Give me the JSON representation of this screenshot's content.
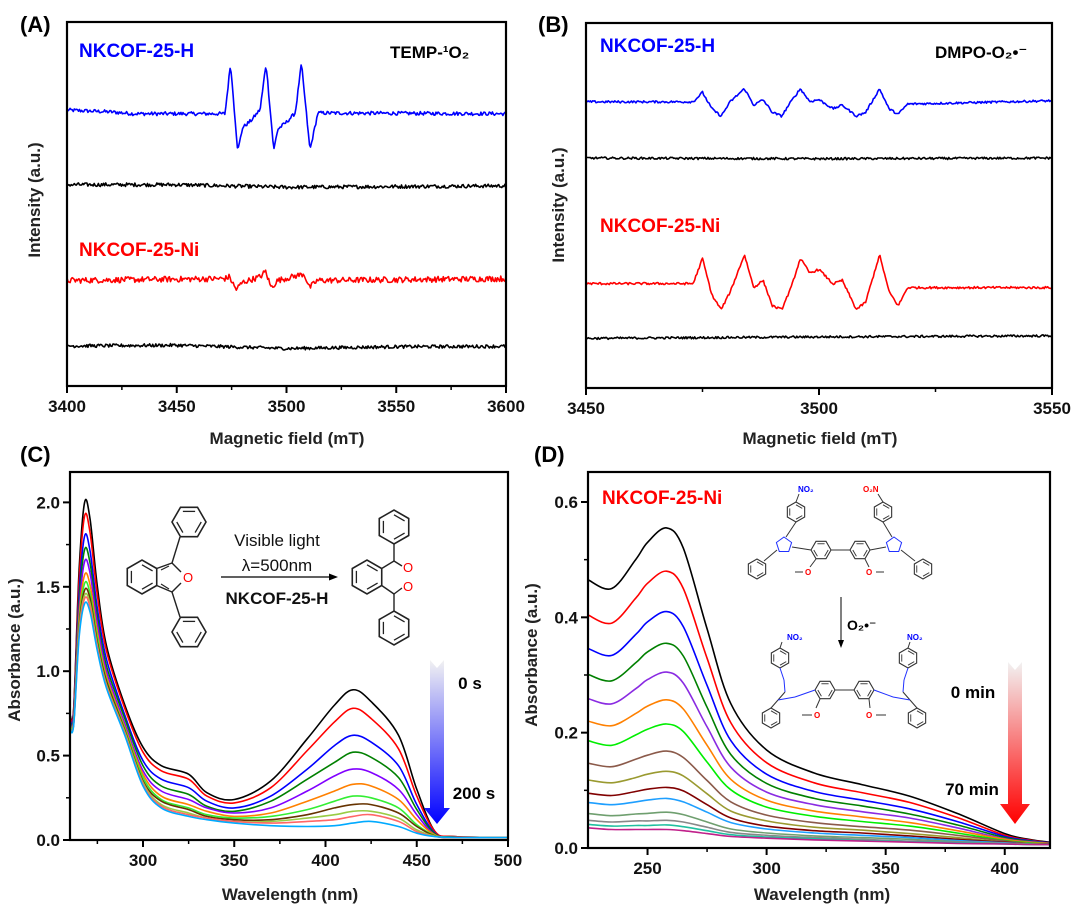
{
  "panels": {
    "A": {
      "label": "(A)",
      "label_h": "NKCOF-25-H",
      "label_ni": "NKCOF-25-Ni",
      "probe": "TEMP-¹O₂"
    },
    "B": {
      "label": "(B)",
      "label_h": "NKCOF-25-H",
      "label_ni": "NKCOF-25-Ni",
      "probe": "DMPO-O₂•⁻"
    },
    "C": {
      "label": "(C)",
      "reaction_top": "Visible light",
      "reaction_wavelength": "λ=500nm",
      "catalyst": "NKCOF-25-H",
      "atom_o": "O",
      "time_start": "0 s",
      "time_end": "200 s"
    },
    "D": {
      "label": "(D)",
      "sample": "NKCOF-25-Ni",
      "nitro_left": "NO₂",
      "nitro_right": "O₂N",
      "atom_o": "O",
      "reagent": "O₂•⁻",
      "time_start": "0 min",
      "time_end": "70 min"
    }
  },
  "colors": {
    "blue_arrow": "#0000ff",
    "red_arrow": "#ff0000",
    "h_label": "#0000ff",
    "ni_label": "#ff0000"
  },
  "chart_data": [
    {
      "panel": "A",
      "type": "line",
      "xlabel": "Magnetic field (mT)",
      "ylabel": "Intensity (a.u.)",
      "xlim": [
        3400,
        3600
      ],
      "ylim": [
        0,
        100
      ],
      "xticks": [
        3400,
        3450,
        3500,
        3550,
        3600
      ],
      "xtick_labels": [
        "3400",
        "3450",
        "3500",
        "3550",
        "3600"
      ],
      "xminor": [
        3425,
        3475,
        3525,
        3575
      ],
      "yticks": [],
      "grid": false,
      "series": [
        {
          "name": "NKCOF-25-H",
          "color": "#0000ff",
          "noise": 0.5,
          "x": [
            3400,
            3420,
            3430,
            3472,
            3474.5,
            3477.8,
            3480,
            3484,
            3488,
            3490.7,
            3494.2,
            3496,
            3500,
            3504,
            3506.8,
            3510.7,
            3514.3,
            3600
          ],
          "y": [
            75.8,
            75.3,
            74.8,
            74.8,
            88.6,
            64.5,
            71,
            73,
            76,
            88.6,
            64.8,
            70.5,
            72.5,
            75,
            88.6,
            64.8,
            75,
            74.8
          ]
        },
        {
          "color": "#000000",
          "noise": 0.5,
          "x": [
            3400,
            3450,
            3500,
            3550,
            3600
          ],
          "y": [
            55.3,
            55.3,
            54.6,
            54.8,
            55
          ]
        },
        {
          "name": "NKCOF-25-Ni",
          "color": "#ff0000",
          "noise": 0.8,
          "x": [
            3400,
            3472,
            3474,
            3477,
            3480,
            3488,
            3490.5,
            3493,
            3496,
            3506,
            3508,
            3510.5,
            3514,
            3600
          ],
          "y": [
            29,
            29.5,
            30,
            26.5,
            28.5,
            30,
            31.5,
            27,
            29,
            30.5,
            30.8,
            27,
            29,
            29.5
          ]
        },
        {
          "color": "#000000",
          "noise": 0.45,
          "x": [
            3400,
            3450,
            3500,
            3550,
            3600
          ],
          "y": [
            11,
            11.2,
            10.3,
            10.8,
            10.9
          ]
        }
      ]
    },
    {
      "panel": "B",
      "type": "line",
      "xlabel": "Magnetic field (mT)",
      "ylabel": "Intensity (a.u.)",
      "xlim": [
        3450,
        3550
      ],
      "ylim": [
        0,
        100
      ],
      "xticks": [
        3450,
        3500,
        3550
      ],
      "xtick_labels": [
        "3450",
        "3500",
        "3550"
      ],
      "xminor": [
        3475,
        3525
      ],
      "yticks": [],
      "grid": false,
      "series": [
        {
          "name": "NKCOF-25-H",
          "color": "#0000ff",
          "noise": 0.3,
          "x": [
            3450,
            3473,
            3475,
            3477,
            3479,
            3481,
            3484,
            3486,
            3488,
            3490,
            3492,
            3494,
            3496,
            3498,
            3500,
            3503,
            3505,
            3508,
            3510,
            3513,
            3515,
            3517,
            3519,
            3550
          ],
          "y": [
            78.4,
            78.4,
            81,
            76.5,
            74.5,
            78.5,
            82,
            77.5,
            79,
            75.5,
            74.5,
            78.5,
            82,
            78.5,
            79,
            76.5,
            77.5,
            74.5,
            75.5,
            82,
            76.5,
            75,
            77.8,
            78.7
          ]
        },
        {
          "color": "#000000",
          "noise": 0.3,
          "x": [
            3450,
            3500,
            3550
          ],
          "y": [
            63,
            62.8,
            63
          ]
        },
        {
          "name": "NKCOF-25-Ni",
          "color": "#ff0000",
          "noise": 0.3,
          "x": [
            3450,
            3473,
            3475,
            3477,
            3479,
            3481,
            3484,
            3486,
            3488,
            3490,
            3492,
            3494,
            3496,
            3498,
            3500,
            3503,
            3505,
            3508,
            3510,
            3513,
            3515,
            3517,
            3519,
            3550
          ],
          "y": [
            28.6,
            28.6,
            35.5,
            25.5,
            21.5,
            26.5,
            36.5,
            27.5,
            29.5,
            22.5,
            21.5,
            27.5,
            35.5,
            31.5,
            32.5,
            28.5,
            29.5,
            21.5,
            23.5,
            36.5,
            26.5,
            22.5,
            27.5,
            27.5
          ]
        },
        {
          "color": "#000000",
          "noise": 0.3,
          "x": [
            3450,
            3500,
            3550
          ],
          "y": [
            13.6,
            14,
            14.3
          ]
        }
      ]
    },
    {
      "panel": "C",
      "type": "line",
      "xlabel": "Wavelength (nm)",
      "ylabel": "Absorbance (a.u.)",
      "xlim": [
        260,
        500
      ],
      "ylim": [
        0,
        2.18
      ],
      "xticks": [
        300,
        350,
        400,
        450,
        500
      ],
      "xtick_labels": [
        "300",
        "350",
        "400",
        "450",
        "500"
      ],
      "xminor": [
        275,
        325,
        375,
        425,
        475
      ],
      "yticks": [
        0,
        0.5,
        1.0,
        1.5,
        2.0
      ],
      "ytick_labels": [
        "0.0",
        "0.5",
        "1.0",
        "1.5",
        "2.0"
      ],
      "yminor": [
        0.25,
        0.75,
        1.25,
        1.75
      ],
      "grid": false,
      "x": [
        260,
        262,
        265,
        268,
        271,
        275,
        280,
        290,
        300,
        310,
        325,
        335,
        350,
        370,
        390,
        405,
        415,
        425,
        440,
        450,
        460,
        470,
        500
      ],
      "series": [
        {
          "color": "#000000",
          "y": [
            0.74,
            0.78,
            1.6,
            2.0,
            1.9,
            1.5,
            1.15,
            0.8,
            0.55,
            0.44,
            0.39,
            0.28,
            0.24,
            0.35,
            0.6,
            0.8,
            0.89,
            0.82,
            0.62,
            0.3,
            0.05,
            0.02,
            0.015
          ]
        },
        {
          "color": "#ff0000",
          "y": [
            0.73,
            0.77,
            1.54,
            1.92,
            1.82,
            1.45,
            1.12,
            0.78,
            0.52,
            0.41,
            0.36,
            0.26,
            0.22,
            0.31,
            0.53,
            0.7,
            0.78,
            0.72,
            0.54,
            0.26,
            0.05,
            0.02,
            0.015
          ]
        },
        {
          "color": "#0000ff",
          "y": [
            0.71,
            0.75,
            1.46,
            1.8,
            1.71,
            1.37,
            1.07,
            0.74,
            0.47,
            0.36,
            0.31,
            0.23,
            0.19,
            0.26,
            0.42,
            0.56,
            0.62,
            0.58,
            0.44,
            0.21,
            0.04,
            0.018,
            0.015
          ]
        },
        {
          "color": "#008000",
          "y": [
            0.7,
            0.73,
            1.41,
            1.72,
            1.64,
            1.32,
            1.03,
            0.72,
            0.44,
            0.32,
            0.27,
            0.2,
            0.17,
            0.23,
            0.36,
            0.46,
            0.52,
            0.49,
            0.37,
            0.18,
            0.036,
            0.017,
            0.015
          ]
        },
        {
          "color": "#8000ff",
          "y": [
            0.69,
            0.72,
            1.36,
            1.65,
            1.58,
            1.28,
            1.0,
            0.69,
            0.41,
            0.29,
            0.24,
            0.19,
            0.16,
            0.19,
            0.29,
            0.38,
            0.42,
            0.4,
            0.3,
            0.15,
            0.03,
            0.016,
            0.015
          ]
        },
        {
          "color": "#ff8000",
          "y": [
            0.68,
            0.71,
            1.32,
            1.57,
            1.51,
            1.23,
            0.97,
            0.67,
            0.39,
            0.26,
            0.21,
            0.17,
            0.14,
            0.16,
            0.23,
            0.29,
            0.33,
            0.32,
            0.24,
            0.12,
            0.03,
            0.016,
            0.015
          ]
        },
        {
          "color": "#33ee33",
          "y": [
            0.68,
            0.7,
            1.28,
            1.52,
            1.46,
            1.2,
            0.95,
            0.66,
            0.37,
            0.24,
            0.19,
            0.15,
            0.13,
            0.14,
            0.18,
            0.23,
            0.26,
            0.25,
            0.19,
            0.09,
            0.026,
            0.016,
            0.015
          ]
        },
        {
          "color": "#663300",
          "y": [
            0.67,
            0.69,
            1.26,
            1.48,
            1.43,
            1.17,
            0.94,
            0.65,
            0.35,
            0.23,
            0.18,
            0.14,
            0.12,
            0.12,
            0.15,
            0.19,
            0.21,
            0.21,
            0.16,
            0.08,
            0.024,
            0.015,
            0.015
          ]
        },
        {
          "color": "#99cc44",
          "y": [
            0.67,
            0.69,
            1.24,
            1.45,
            1.4,
            1.15,
            0.92,
            0.64,
            0.34,
            0.21,
            0.16,
            0.13,
            0.11,
            0.11,
            0.13,
            0.15,
            0.17,
            0.17,
            0.13,
            0.06,
            0.023,
            0.015,
            0.015
          ]
        },
        {
          "color": "#ff6666",
          "y": [
            0.66,
            0.69,
            1.22,
            1.43,
            1.38,
            1.14,
            0.91,
            0.63,
            0.33,
            0.2,
            0.15,
            0.13,
            0.11,
            0.1,
            0.11,
            0.12,
            0.14,
            0.15,
            0.11,
            0.05,
            0.021,
            0.015,
            0.015
          ]
        },
        {
          "color": "#00aaff",
          "y": [
            0.66,
            0.68,
            1.2,
            1.4,
            1.35,
            1.12,
            0.9,
            0.62,
            0.32,
            0.19,
            0.14,
            0.12,
            0.1,
            0.085,
            0.08,
            0.085,
            0.1,
            0.11,
            0.08,
            0.04,
            0.02,
            0.015,
            0.015
          ]
        }
      ]
    },
    {
      "panel": "D",
      "type": "line",
      "xlabel": "Wavelength (nm)",
      "ylabel": "Absorbance (a.u.)",
      "xlim": [
        225,
        419
      ],
      "ylim": [
        0,
        0.652
      ],
      "xticks": [
        250,
        300,
        350,
        400
      ],
      "xtick_labels": [
        "250",
        "300",
        "350",
        "400"
      ],
      "xminor": [
        275,
        325,
        375
      ],
      "yticks": [
        0,
        0.2,
        0.4,
        0.6
      ],
      "ytick_labels": [
        "0.0",
        "0.2",
        "0.4",
        "0.6"
      ],
      "yminor": [
        0.1,
        0.3,
        0.5
      ],
      "grid": false,
      "x": [
        225,
        235,
        245,
        250,
        258,
        265,
        275,
        285,
        300,
        320,
        340,
        360,
        380,
        400,
        410,
        419
      ],
      "series": [
        {
          "color": "#000000",
          "y": [
            0.465,
            0.45,
            0.5,
            0.53,
            0.555,
            0.52,
            0.38,
            0.25,
            0.17,
            0.13,
            0.11,
            0.09,
            0.06,
            0.025,
            0.015,
            0.01
          ]
        },
        {
          "color": "#ff0000",
          "y": [
            0.404,
            0.39,
            0.433,
            0.459,
            0.48,
            0.45,
            0.329,
            0.217,
            0.148,
            0.113,
            0.096,
            0.079,
            0.053,
            0.022,
            0.014,
            0.009
          ]
        },
        {
          "color": "#0000ff",
          "y": [
            0.346,
            0.334,
            0.37,
            0.392,
            0.41,
            0.384,
            0.282,
            0.186,
            0.128,
            0.098,
            0.083,
            0.068,
            0.046,
            0.02,
            0.013,
            0.009
          ]
        },
        {
          "color": "#008000",
          "y": [
            0.301,
            0.29,
            0.321,
            0.34,
            0.355,
            0.333,
            0.244,
            0.162,
            0.112,
            0.086,
            0.073,
            0.059,
            0.04,
            0.018,
            0.012,
            0.008
          ]
        },
        {
          "color": "#8a2be2",
          "y": [
            0.259,
            0.25,
            0.276,
            0.292,
            0.305,
            0.286,
            0.21,
            0.14,
            0.097,
            0.075,
            0.063,
            0.052,
            0.035,
            0.016,
            0.011,
            0.008
          ]
        },
        {
          "color": "#ff8000",
          "y": [
            0.22,
            0.212,
            0.233,
            0.246,
            0.257,
            0.241,
            0.178,
            0.119,
            0.083,
            0.064,
            0.054,
            0.044,
            0.03,
            0.015,
            0.01,
            0.008
          ]
        },
        {
          "color": "#00ee00",
          "y": [
            0.186,
            0.178,
            0.196,
            0.206,
            0.215,
            0.202,
            0.149,
            0.101,
            0.071,
            0.055,
            0.046,
            0.038,
            0.026,
            0.013,
            0.009,
            0.007
          ]
        },
        {
          "color": "#8b5a4a",
          "y": [
            0.147,
            0.141,
            0.154,
            0.161,
            0.168,
            0.157,
            0.117,
            0.08,
            0.057,
            0.044,
            0.037,
            0.031,
            0.022,
            0.012,
            0.008,
            0.007
          ]
        },
        {
          "color": "#9a9a30",
          "y": [
            0.118,
            0.113,
            0.122,
            0.128,
            0.133,
            0.125,
            0.094,
            0.064,
            0.047,
            0.036,
            0.031,
            0.025,
            0.018,
            0.01,
            0.008,
            0.007
          ]
        },
        {
          "color": "#800000",
          "y": [
            0.095,
            0.091,
            0.098,
            0.102,
            0.105,
            0.099,
            0.075,
            0.052,
            0.038,
            0.03,
            0.026,
            0.021,
            0.015,
            0.01,
            0.007,
            0.007
          ]
        },
        {
          "color": "#1e9fff",
          "y": [
            0.079,
            0.075,
            0.08,
            0.083,
            0.086,
            0.08,
            0.062,
            0.044,
            0.033,
            0.026,
            0.022,
            0.018,
            0.013,
            0.009,
            0.007,
            0.006
          ]
        },
        {
          "color": "#6f9f6f",
          "y": [
            0.06,
            0.056,
            0.059,
            0.06,
            0.062,
            0.058,
            0.045,
            0.033,
            0.026,
            0.021,
            0.018,
            0.015,
            0.011,
            0.008,
            0.007,
            0.006
          ]
        },
        {
          "color": "#888888",
          "y": [
            0.048,
            0.045,
            0.047,
            0.047,
            0.048,
            0.045,
            0.036,
            0.027,
            0.022,
            0.018,
            0.015,
            0.012,
            0.01,
            0.008,
            0.006,
            0.006
          ]
        },
        {
          "color": "#20c0a0",
          "y": [
            0.041,
            0.038,
            0.039,
            0.039,
            0.04,
            0.037,
            0.03,
            0.023,
            0.019,
            0.016,
            0.013,
            0.011,
            0.009,
            0.007,
            0.006,
            0.006
          ]
        },
        {
          "color": "#c0208a",
          "y": [
            0.035,
            0.032,
            0.032,
            0.032,
            0.032,
            0.03,
            0.025,
            0.02,
            0.017,
            0.014,
            0.012,
            0.01,
            0.008,
            0.007,
            0.006,
            0.006
          ]
        }
      ]
    }
  ]
}
